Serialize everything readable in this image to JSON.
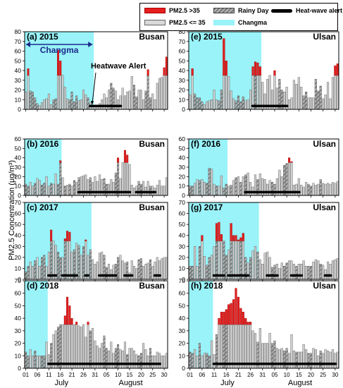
{
  "legend": {
    "pm_high": "PM2.5 >35",
    "pm_low": "PM2.5 <= 35",
    "rainy": "Rainy Day",
    "changma": "Changma",
    "heatwave": "Heat-wave alert"
  },
  "ylabel": "PM2.5 Concentration (μg/m³)",
  "xaxis": {
    "ticks": [
      "01",
      "06",
      "11",
      "16",
      "21",
      "26",
      "31",
      "05",
      "10",
      "15",
      "20",
      "25",
      "30"
    ],
    "months": [
      "July",
      "August"
    ]
  },
  "annotations": {
    "changma_arrow": "Changma",
    "heatwave_alert": "Heatwave Alert"
  },
  "colors": {
    "high": "#e61e1e",
    "low": "#cfcfcf",
    "rain": "#9a9a9a",
    "changma": "#99f3f8",
    "heat": "#000000"
  },
  "chart_data": [
    {
      "panel": "(a) 2015",
      "city": "Busan",
      "type": "bar",
      "ylim": [
        0,
        80
      ],
      "yticks": [
        0,
        10,
        20,
        30,
        40,
        50,
        60,
        70,
        80
      ],
      "days": 62,
      "changma": [
        1,
        30
      ],
      "heatwave": [
        [
          29,
          42
        ]
      ],
      "values": [
        18,
        42,
        19,
        18,
        12,
        6,
        4,
        7,
        10,
        11,
        16,
        5,
        10,
        11,
        61,
        50,
        35,
        23,
        11,
        10,
        18,
        8,
        14,
        9,
        10,
        20,
        15,
        12,
        7,
        4,
        4,
        4,
        6,
        10,
        16,
        12,
        20,
        27,
        22,
        19,
        10,
        14,
        22,
        14,
        18,
        19,
        34,
        25,
        13,
        20,
        20,
        10,
        19,
        41,
        12,
        16,
        10,
        27,
        32,
        33,
        43,
        54
      ],
      "rainy": [
        3,
        4,
        5,
        6,
        13,
        14,
        20,
        21,
        22,
        23,
        28,
        38,
        39,
        48,
        49,
        53,
        54,
        55
      ]
    },
    {
      "panel": "(e) 2015",
      "city": "Ulsan",
      "type": "bar",
      "ylim": [
        0,
        80
      ],
      "yticks": [
        0,
        10,
        20,
        30,
        40,
        50,
        60,
        70,
        80
      ],
      "days": 62,
      "changma": [
        1,
        30
      ],
      "heatwave": [
        [
          27,
          41
        ]
      ],
      "values": [
        15,
        42,
        16,
        12,
        12,
        8,
        5,
        8,
        9,
        10,
        20,
        10,
        9,
        20,
        73,
        50,
        34,
        19,
        11,
        9,
        14,
        8,
        13,
        9,
        10,
        20,
        44,
        49,
        48,
        44,
        28,
        16,
        31,
        35,
        20,
        40,
        22,
        31,
        20,
        18,
        23,
        10,
        12,
        30,
        26,
        33,
        23,
        14,
        18,
        12,
        12,
        12,
        31,
        19,
        24,
        11,
        15,
        28,
        11,
        33,
        45,
        47
      ],
      "rainy": [
        3,
        4,
        5,
        6,
        13,
        14,
        20,
        21,
        22,
        23,
        28,
        38,
        39,
        48,
        49,
        53,
        54,
        55
      ]
    },
    {
      "panel": "(b) 2016",
      "city": "Busan",
      "type": "bar",
      "ylim": [
        0,
        60
      ],
      "yticks": [
        0,
        10,
        20,
        30,
        40,
        50,
        60
      ],
      "days": 62,
      "changma": [
        1,
        16
      ],
      "heatwave": [
        [
          24,
          46
        ],
        [
          49,
          57
        ]
      ],
      "values": [
        12,
        10,
        14,
        10,
        13,
        18,
        16,
        11,
        13,
        20,
        10,
        13,
        12,
        23,
        12,
        37,
        19,
        10,
        11,
        12,
        10,
        16,
        14,
        19,
        20,
        21,
        22,
        17,
        19,
        14,
        20,
        15,
        22,
        17,
        18,
        12,
        12,
        17,
        14,
        24,
        40,
        18,
        35,
        48,
        43,
        33,
        11,
        8,
        10,
        15,
        12,
        15,
        9,
        15,
        10,
        10,
        8,
        11,
        16,
        10,
        10,
        19
      ],
      "rainy": [
        1,
        2,
        5,
        8,
        9,
        12,
        15,
        16,
        18,
        20,
        22,
        24,
        29,
        35,
        36,
        40,
        41,
        50,
        51,
        55
      ]
    },
    {
      "panel": "(f) 2016",
      "city": "Ulsan",
      "type": "bar",
      "ylim": [
        0,
        60
      ],
      "yticks": [
        0,
        10,
        20,
        30,
        40,
        50,
        60
      ],
      "days": 62,
      "changma": [
        1,
        16
      ],
      "heatwave": [
        [
          24,
          46
        ]
      ],
      "values": [
        10,
        10,
        13,
        17,
        16,
        17,
        14,
        13,
        29,
        28,
        12,
        10,
        10,
        21,
        8,
        12,
        10,
        11,
        16,
        19,
        20,
        14,
        20,
        22,
        24,
        14,
        9,
        22,
        17,
        23,
        18,
        17,
        12,
        16,
        14,
        12,
        18,
        27,
        20,
        32,
        34,
        40,
        36,
        11,
        12,
        18,
        11,
        9,
        14,
        12,
        10,
        13,
        11,
        12,
        17,
        13,
        12,
        13,
        12,
        14,
        13,
        15
      ],
      "rainy": [
        1,
        2,
        5,
        8,
        9,
        12,
        15,
        16,
        18,
        20,
        22,
        24,
        29,
        35,
        36,
        40,
        41,
        50,
        51,
        55
      ]
    },
    {
      "panel": "(c) 2017",
      "city": "Busan",
      "type": "bar",
      "ylim": [
        0,
        70
      ],
      "yticks": [
        0,
        10,
        20,
        30,
        40,
        50,
        60,
        70
      ],
      "days": 62,
      "changma": [
        1,
        29
      ],
      "heatwave": [
        [
          11,
          14
        ],
        [
          17,
          23
        ],
        [
          27,
          28
        ],
        [
          33,
          40
        ],
        [
          44,
          47
        ],
        [
          57,
          59
        ]
      ],
      "values": [
        7,
        12,
        16,
        12,
        17,
        20,
        12,
        20,
        22,
        12,
        25,
        45,
        35,
        31,
        25,
        20,
        20,
        37,
        44,
        43,
        25,
        27,
        33,
        31,
        22,
        30,
        36,
        22,
        27,
        18,
        14,
        16,
        24,
        25,
        22,
        11,
        14,
        9,
        13,
        14,
        20,
        22,
        17,
        15,
        16,
        6,
        17,
        12,
        10,
        18,
        19,
        12,
        14,
        15,
        18,
        12,
        16,
        20,
        17,
        19,
        20,
        20
      ],
      "rainy": [
        1,
        2,
        5,
        8,
        9,
        12,
        15,
        16,
        18,
        22,
        24,
        26,
        29,
        35,
        36,
        40,
        41,
        45,
        50,
        51,
        55
      ]
    },
    {
      "panel": "(g) 2017",
      "city": "Ulsan",
      "type": "bar",
      "ylim": [
        0,
        70
      ],
      "yticks": [
        0,
        10,
        20,
        30,
        40,
        50,
        60,
        70
      ],
      "days": 62,
      "changma": [
        1,
        29
      ],
      "heatwave": [
        [
          11,
          15
        ],
        [
          17,
          25
        ],
        [
          33,
          37
        ],
        [
          43,
          47
        ],
        [
          57,
          59
        ]
      ],
      "values": [
        12,
        12,
        30,
        12,
        30,
        40,
        21,
        13,
        20,
        22,
        30,
        51,
        52,
        41,
        35,
        22,
        27,
        51,
        40,
        40,
        36,
        38,
        42,
        20,
        15,
        20,
        26,
        30,
        25,
        18,
        14,
        24,
        25,
        20,
        11,
        13,
        14,
        10,
        15,
        12,
        15,
        17,
        17,
        14,
        12,
        14,
        14,
        17,
        12,
        12,
        12,
        16,
        18,
        17,
        14,
        13,
        9,
        16,
        14,
        17,
        18,
        19
      ],
      "rainy": [
        1,
        2,
        5,
        8,
        9,
        12,
        15,
        16,
        18,
        22,
        24,
        26,
        29,
        35,
        36,
        40,
        41,
        45,
        50,
        51,
        55
      ]
    },
    {
      "panel": "(d) 2018",
      "city": "Busan",
      "type": "bar",
      "ylim": [
        0,
        70
      ],
      "yticks": [
        0,
        10,
        20,
        30,
        40,
        50,
        60,
        70
      ],
      "days": 62,
      "changma": [
        1,
        10
      ],
      "heatwave": [
        [
          11,
          59
        ]
      ],
      "values": [
        13,
        10,
        15,
        10,
        14,
        10,
        10,
        10,
        10,
        21,
        11,
        20,
        27,
        30,
        33,
        35,
        35,
        42,
        57,
        50,
        40,
        35,
        37,
        34,
        33,
        35,
        25,
        37,
        30,
        32,
        22,
        18,
        16,
        20,
        26,
        16,
        14,
        21,
        12,
        16,
        19,
        15,
        14,
        21,
        11,
        16,
        16,
        14,
        11,
        10,
        12,
        20,
        15,
        10,
        16,
        10,
        10,
        13,
        12,
        10,
        10,
        12
      ],
      "rainy": [
        1,
        2,
        5,
        8,
        9,
        12,
        15,
        16,
        29,
        35,
        36,
        40,
        41,
        45,
        50,
        51,
        55
      ]
    },
    {
      "panel": "(h) 2018",
      "city": "Ulsan",
      "type": "bar",
      "ylim": [
        0,
        70
      ],
      "yticks": [
        0,
        10,
        20,
        30,
        40,
        50,
        60,
        70
      ],
      "days": 62,
      "changma": [
        1,
        10
      ],
      "heatwave": [
        [
          11,
          61
        ]
      ],
      "values": [
        13,
        12,
        15,
        10,
        20,
        10,
        12,
        12,
        10,
        22,
        11,
        27,
        40,
        45,
        45,
        47,
        51,
        52,
        55,
        64,
        57,
        48,
        45,
        40,
        37,
        37,
        30,
        28,
        21,
        32,
        20,
        20,
        20,
        28,
        20,
        22,
        16,
        15,
        16,
        14,
        16,
        12,
        27,
        14,
        13,
        13,
        13,
        19,
        15,
        12,
        12,
        16,
        15,
        10,
        14,
        12,
        15,
        14,
        13,
        15,
        12,
        13
      ],
      "rainy": [
        1,
        2,
        5,
        8,
        9,
        12,
        15,
        16,
        29,
        35,
        36,
        40,
        41,
        45,
        50,
        51,
        55
      ]
    }
  ]
}
